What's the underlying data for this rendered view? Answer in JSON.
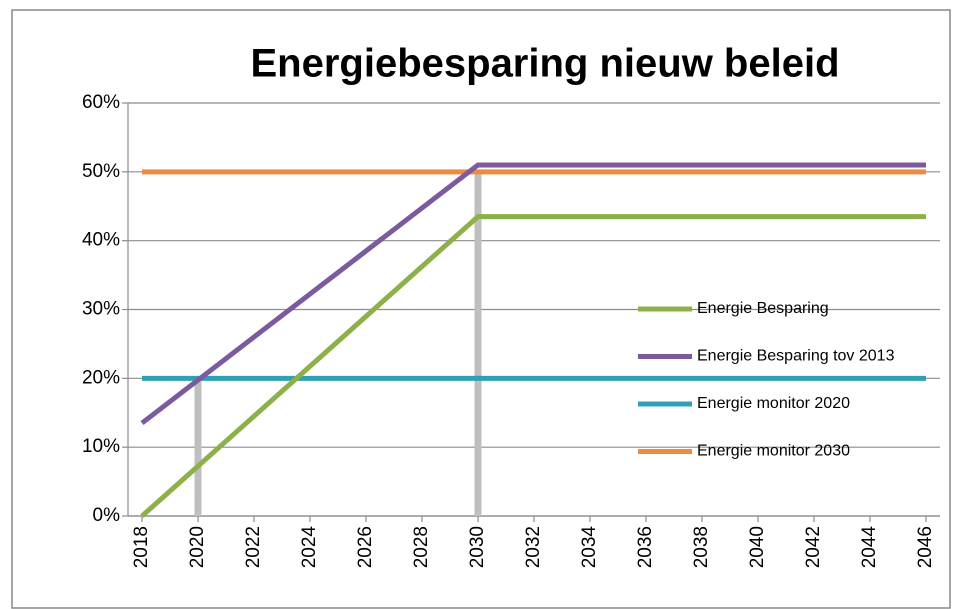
{
  "chart_data": {
    "type": "line",
    "title": "Energiebesparing nieuw beleid",
    "x": [
      2018,
      2020,
      2030,
      2046
    ],
    "series": [
      {
        "name": "Energie Besparing",
        "color": "#8db14a",
        "values": [
          0,
          7.25,
          43.5,
          43.5
        ]
      },
      {
        "name": "Energie Besparing tov 2013",
        "color": "#7b5a9e",
        "values": [
          13.5,
          19.75,
          51,
          51
        ]
      },
      {
        "name": "Energie monitor 2020",
        "color": "#31a0b5",
        "values": [
          20,
          20,
          20,
          20
        ]
      },
      {
        "name": "Energie monitor 2030",
        "color": "#f08a3e",
        "values": [
          50,
          50,
          50,
          50
        ]
      }
    ],
    "drop_lines": {
      "x": [
        2020,
        2030
      ],
      "values": [
        20,
        50
      ],
      "color": "#bfbfbf"
    },
    "xlim": [
      2017.5,
      2046.5
    ],
    "xticks": [
      2018,
      2020,
      2022,
      2024,
      2026,
      2028,
      2030,
      2032,
      2034,
      2036,
      2038,
      2040,
      2042,
      2044,
      2046
    ],
    "ylim": [
      0,
      60
    ],
    "yticks": [
      {
        "value": 0,
        "label": "0%"
      },
      {
        "value": 10,
        "label": "10%"
      },
      {
        "value": 20,
        "label": "20%"
      },
      {
        "value": 30,
        "label": "30%"
      },
      {
        "value": 40,
        "label": "40%"
      },
      {
        "value": 50,
        "label": "50%"
      },
      {
        "value": 60,
        "label": "60%"
      }
    ],
    "grid": true
  }
}
